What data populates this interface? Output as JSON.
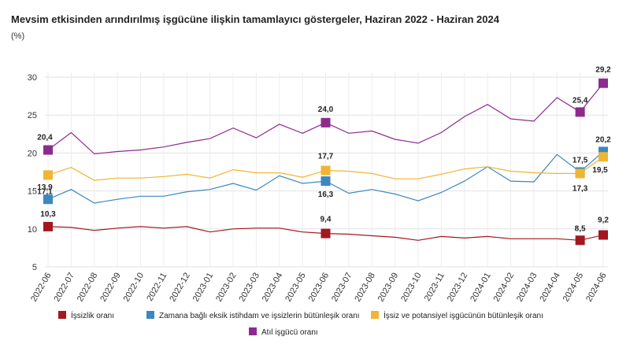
{
  "chart_data": {
    "type": "line",
    "title": "Mevsim etkisinden arındırılmış işgücüne ilişkin tamamlayıcı göstergeler, Haziran 2022 - Haziran 2024",
    "ylabel": "(%)",
    "xlabel": "",
    "ylim": [
      5,
      30
    ],
    "yticks": [
      5,
      10,
      15,
      20,
      25,
      30
    ],
    "grid": true,
    "legend_position": "bottom",
    "categories": [
      "2022-06",
      "2022-07",
      "2022-08",
      "2022-09",
      "2022-10",
      "2022-11",
      "2022-12",
      "2023-01",
      "2023-02",
      "2023-03",
      "2023-04",
      "2023-05",
      "2023-06",
      "2023-07",
      "2023-08",
      "2023-09",
      "2023-10",
      "2023-11",
      "2023-12",
      "2024-01",
      "2024-02",
      "2024-03",
      "2024-04",
      "2024-05",
      "2024-06"
    ],
    "series": [
      {
        "name": "İşsizlik oranı",
        "color": "#a3171f",
        "values": [
          10.3,
          10.2,
          9.8,
          10.1,
          10.3,
          10.1,
          10.3,
          9.6,
          10.0,
          10.1,
          10.1,
          9.6,
          9.4,
          9.3,
          9.1,
          8.9,
          8.5,
          9.0,
          8.8,
          9.0,
          8.7,
          8.7,
          8.7,
          8.5,
          9.2
        ],
        "marked": [
          {
            "index": 0,
            "label": "10,3"
          },
          {
            "index": 12,
            "label": "9,4"
          },
          {
            "index": 23,
            "label": "8,5"
          },
          {
            "index": 24,
            "label": "9,2"
          }
        ]
      },
      {
        "name": "Zamana bağlı eksik istihdam ve işsizlerin bütünleşik oranı",
        "color": "#3b87c2",
        "values": [
          13.9,
          15.2,
          13.4,
          13.9,
          14.3,
          14.3,
          14.9,
          15.2,
          16.0,
          15.1,
          17.0,
          16.0,
          16.3,
          14.7,
          15.2,
          14.6,
          13.7,
          14.8,
          16.3,
          18.2,
          16.3,
          16.2,
          19.8,
          17.5,
          20.2
        ],
        "marked": [
          {
            "index": 0,
            "label": "13,9"
          },
          {
            "index": 12,
            "label": "16,3"
          },
          {
            "index": 23,
            "label": "17,5"
          },
          {
            "index": 24,
            "label": "20,2"
          }
        ]
      },
      {
        "name": "İşsiz ve potansiyel işgücünün bütünleşik oranı",
        "color": "#f0b532",
        "values": [
          17.1,
          18.1,
          16.4,
          16.7,
          16.7,
          16.9,
          17.2,
          16.7,
          17.8,
          17.4,
          17.4,
          16.8,
          17.7,
          17.6,
          17.3,
          16.6,
          16.6,
          17.2,
          17.9,
          18.2,
          17.6,
          17.4,
          17.3,
          17.3,
          19.5
        ],
        "marked": [
          {
            "index": 0,
            "label": "17,1"
          },
          {
            "index": 12,
            "label": "17,7"
          },
          {
            "index": 23,
            "label": "17,3"
          },
          {
            "index": 24,
            "label": "19,5"
          }
        ]
      },
      {
        "name": "Atıl işgücü oranı",
        "color": "#8e2a8e",
        "values": [
          20.4,
          22.7,
          19.9,
          20.2,
          20.4,
          20.8,
          21.4,
          21.9,
          23.3,
          22.0,
          23.8,
          22.6,
          24.0,
          22.6,
          22.9,
          21.8,
          21.3,
          22.7,
          24.8,
          26.4,
          24.5,
          24.2,
          27.3,
          25.4,
          29.2
        ],
        "marked": [
          {
            "index": 0,
            "label": "20,4"
          },
          {
            "index": 12,
            "label": "24,0"
          },
          {
            "index": 23,
            "label": "25,4"
          },
          {
            "index": 24,
            "label": "29,2"
          }
        ]
      }
    ]
  }
}
